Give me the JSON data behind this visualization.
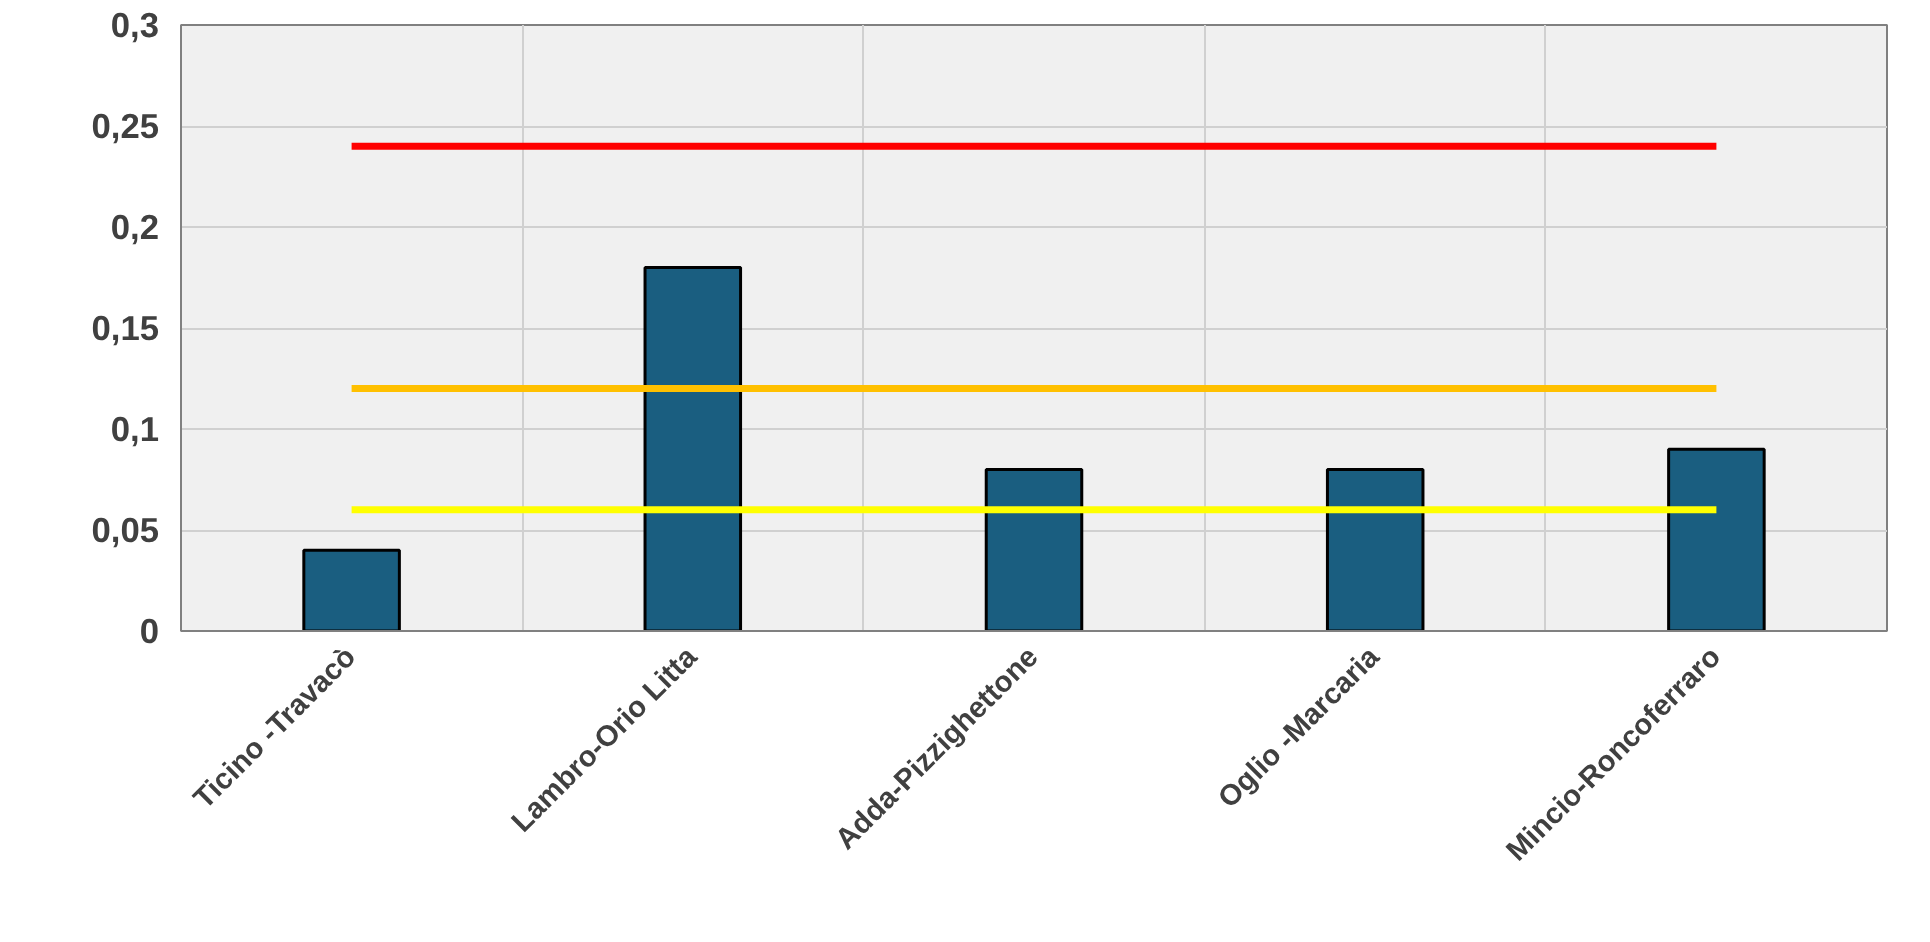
{
  "chart_data": {
    "type": "bar",
    "categories": [
      "Ticino -Travacò",
      "Lambro-Orio Litta",
      "Adda-Pizzighettone",
      "Oglio -Marcaria",
      "Mincio-Roncoferraro"
    ],
    "series": [
      {
        "color": "#1a5e80",
        "values": [
          0.04,
          0.18,
          0.08,
          0.08,
          0.09
        ]
      },
      {
        "type": "line",
        "color": "#ff0000",
        "values": [
          0.24,
          0.24,
          0.24,
          0.24,
          0.24
        ]
      },
      {
        "type": "line",
        "color": "#ffc000",
        "values": [
          0.12,
          0.12,
          0.12,
          0.12,
          0.12
        ]
      },
      {
        "type": "line",
        "color": "#ffff00",
        "values": [
          0.06,
          0.06,
          0.06,
          0.06,
          0.06
        ]
      }
    ],
    "ylim": [
      0,
      0.3
    ],
    "yticks": [
      0,
      {
        "value": 0.05,
        "label": "0,05"
      },
      {
        "value": 0.1,
        "label": "0,1"
      },
      {
        "value": 0.15,
        "label": "0,15"
      },
      {
        "value": 0.2,
        "label": "0,2"
      },
      {
        "value": 0.25,
        "label": "0,25"
      },
      {
        "value": 0.3,
        "label": "0,3"
      }
    ],
    "grid": true
  }
}
